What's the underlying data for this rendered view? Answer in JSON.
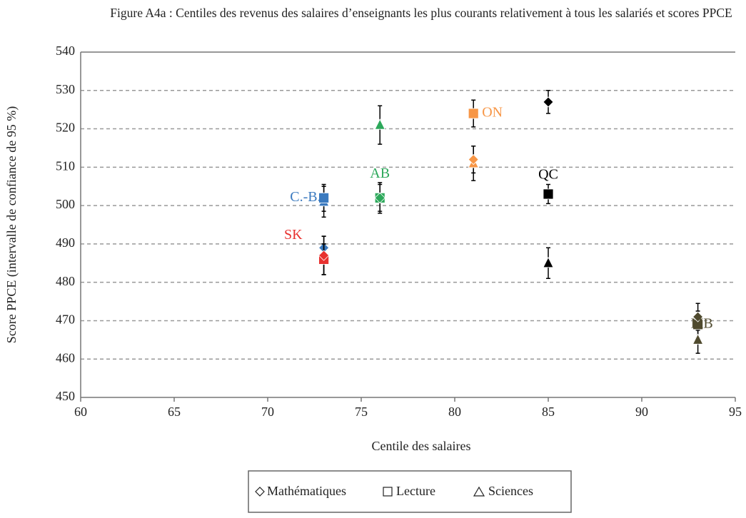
{
  "chart_data": {
    "type": "scatter",
    "title": "Figure A4a : Centiles des revenus des salaires d’enseignants les plus courants relativement à tous les salariés et scores PPCE",
    "xlabel": "Centile des salaires",
    "ylabel": "Score PPCE (intervalle de confiance de 95 %)",
    "xlim": [
      60,
      95
    ],
    "xticks": [
      60,
      65,
      70,
      75,
      80,
      85,
      90,
      95
    ],
    "ylim": [
      450,
      540
    ],
    "yticks": [
      450,
      460,
      470,
      480,
      490,
      500,
      510,
      520,
      530,
      540
    ],
    "grid": true,
    "markers": [
      "Mathématiques",
      "Lecture",
      "Sciences"
    ],
    "series": [
      {
        "name": "C.-B.",
        "color": "#3b7abf",
        "x": 73,
        "values": [
          489,
          502,
          501
        ],
        "errors": [
          3,
          3.5,
          4
        ]
      },
      {
        "name": "SK",
        "color": "#e8312f",
        "x": 73,
        "values": [
          487,
          486,
          486
        ],
        "errors": [
          5,
          4,
          4
        ]
      },
      {
        "name": "AB",
        "color": "#2ca85a",
        "x": 76,
        "values": [
          502,
          502,
          521
        ],
        "errors": [
          4,
          3.5,
          5
        ]
      },
      {
        "name": "ON",
        "color": "#f79646",
        "x": 81,
        "values": [
          512,
          524,
          511
        ],
        "errors": [
          3.5,
          3.5,
          4.5
        ]
      },
      {
        "name": "QC",
        "color": "#000000",
        "x": 85,
        "values": [
          527,
          503,
          485
        ],
        "errors": [
          3,
          2.5,
          4
        ]
      },
      {
        "name": "MB",
        "color": "#4f4a2e",
        "x": 93,
        "values": [
          471,
          469,
          465
        ],
        "errors": [
          3.5,
          3.5,
          3.5
        ]
      }
    ]
  }
}
